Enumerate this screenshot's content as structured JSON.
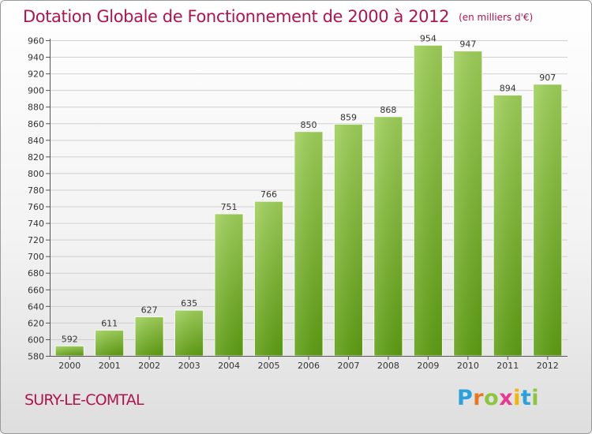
{
  "title": "Dotation Globale de Fonctionnement de 2000 à 2012",
  "subtitle": "(en milliers d'€)",
  "commune": "SURY-LE-COMTAL",
  "logo": {
    "letters": [
      "P",
      "r",
      "o",
      "x",
      "i",
      "t",
      "i"
    ],
    "colors": [
      "#2aa0dc",
      "#e87722",
      "#8cc63f",
      "#e63a8e",
      "#f2b705",
      "#2aa0dc",
      "#8cc63f"
    ]
  },
  "colors": {
    "title": "#b0144e",
    "bar_top": "#9fd05a",
    "bar_bottom": "#5e9e12"
  },
  "chart_data": {
    "type": "bar",
    "categories": [
      "2000",
      "2001",
      "2002",
      "2003",
      "2004",
      "2005",
      "2006",
      "2007",
      "2008",
      "2009",
      "2010",
      "2011",
      "2012"
    ],
    "values": [
      592,
      611,
      627,
      635,
      751,
      766,
      850,
      859,
      868,
      954,
      947,
      894,
      907
    ],
    "title": "Dotation Globale de Fonctionnement de 2000 à 2012",
    "subtitle": "(en milliers d'€)",
    "xlabel": "",
    "ylabel": "",
    "ylim": [
      580,
      960
    ],
    "yticks": [
      580,
      600,
      620,
      640,
      660,
      680,
      700,
      720,
      740,
      760,
      780,
      800,
      820,
      840,
      860,
      880,
      900,
      920,
      940,
      960
    ],
    "grid": true,
    "legend": "none"
  }
}
